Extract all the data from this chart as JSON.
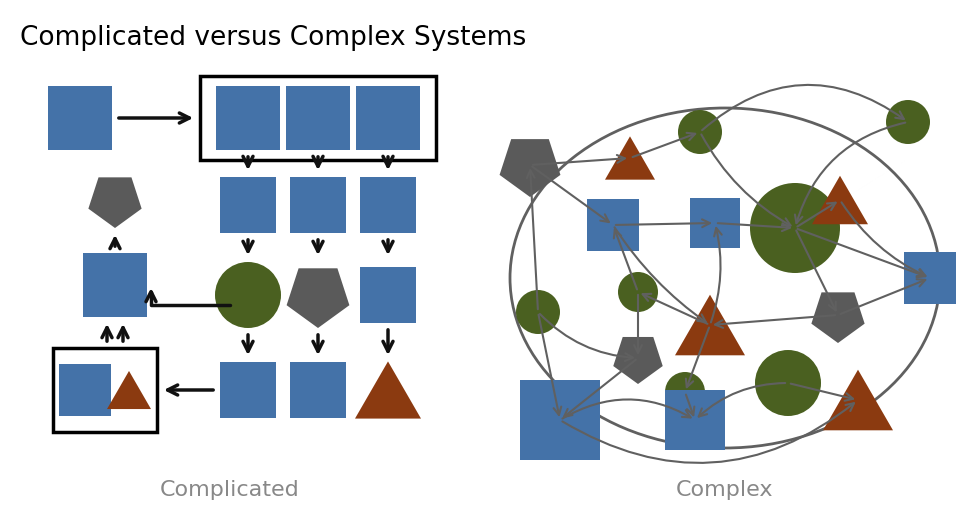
{
  "title": "Complicated versus Complex Systems",
  "subtitle_left": "Complicated",
  "subtitle_right": "Complex",
  "bg_color": "#ffffff",
  "title_fontsize": 19,
  "subtitle_fontsize": 16,
  "blue": "#4472a8",
  "green": "#4a6020",
  "orange": "#8b3a10",
  "gray": "#5a5a5a",
  "arrow_black": "#111111",
  "arrow_gray": "#606060",
  "label_gray": "#888888"
}
